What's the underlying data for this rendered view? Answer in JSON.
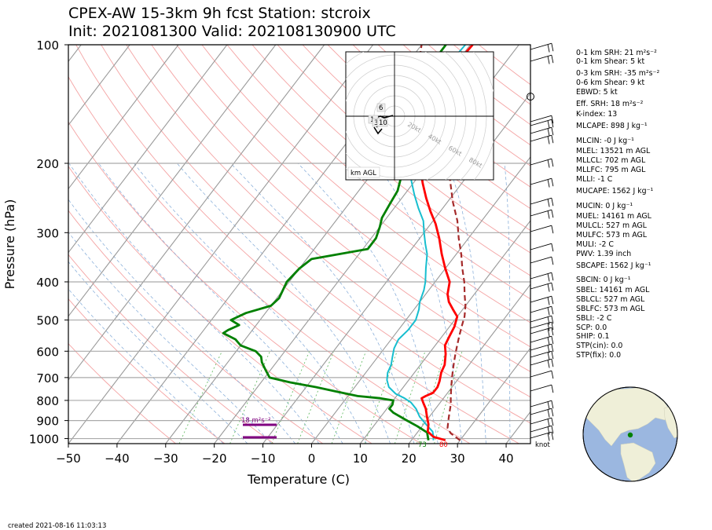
{
  "title": {
    "line1": "CPEX-AW 15-3km  9h fcst  Station: stcroix",
    "line2": "Init: 2021081300  Valid: 202108130900 UTC"
  },
  "footer": "created 2021-08-16 11:03:13",
  "knot_label": "knot",
  "srh_label": "18 m²s⁻²",
  "hodograph": {
    "label": "km AGL",
    "ring_labels": [
      "20kt",
      "40kt",
      "60kt",
      "80kt"
    ],
    "height_labels": [
      "6",
      "1",
      "3",
      "10"
    ]
  },
  "indices": [
    "0-1 km SRH: 21 m²s⁻²",
    "0-1 km Shear: 5 kt",
    "0-3 km SRH: -35 m²s⁻²",
    "0-6 km Shear: 9 kt",
    "EBWD: 5 kt",
    "Eff. SRH: 18 m²s⁻²",
    "K-index: 13",
    "MLCAPE: 898 J kg⁻¹",
    "MLCIN: -0 J kg⁻¹",
    "MLEL: 13521 m AGL",
    "MLLCL: 702 m AGL",
    "MLLFC: 795 m AGL",
    "MLLI: -1 C",
    "MUCAPE: 1562 J kg⁻¹",
    "MUCIN: 0 J kg⁻¹",
    "MUEL: 14161 m AGL",
    "MULCL: 527 m AGL",
    "MULFC: 573 m AGL",
    "MULI: -2 C",
    "PWV: 1.39 inch",
    "SBCAPE: 1562 J kg⁻¹",
    "SBCIN: 0 J kg⁻¹",
    "SBEL: 14161 m AGL",
    "SBLCL: 527 m AGL",
    "SBLFC: 573 m AGL",
    "SBLI: -2 C",
    "SCP: 0.0",
    "SHIP: 0.1",
    "STP(cin): 0.0",
    "STP(fix): 0.0"
  ],
  "chart_data": {
    "type": "line",
    "xlabel": "Temperature (C)",
    "ylabel": "Pressure (hPa)",
    "xlim": [
      -50,
      45
    ],
    "ylim": [
      1030,
      100
    ],
    "y_scale": "log",
    "x_ticks": [
      -50,
      -40,
      -30,
      -20,
      -10,
      0,
      10,
      20,
      30,
      40
    ],
    "y_ticks": [
      100,
      200,
      300,
      400,
      500,
      600,
      700,
      800,
      900,
      1000
    ],
    "surface_labels": {
      "temperature_f": "80",
      "dewpoint_f": "73"
    },
    "colors": {
      "temperature": "#ff0000",
      "dewpoint": "#008000",
      "wetbulb": "#17becf",
      "parcel": "#a52a2a",
      "srh": "#800080"
    },
    "series": [
      {
        "kind": "temperature",
        "points": [
          [
            27,
            1010
          ],
          [
            24,
            990
          ],
          [
            22,
            960
          ],
          [
            21,
            920
          ],
          [
            19.5,
            880
          ],
          [
            18,
            840
          ],
          [
            16.5,
            810
          ],
          [
            15.5,
            790
          ],
          [
            16,
            780
          ],
          [
            17,
            765
          ],
          [
            17,
            740
          ],
          [
            16.5,
            715
          ],
          [
            15.5,
            680
          ],
          [
            15,
            650
          ],
          [
            13.5,
            610
          ],
          [
            12,
            580
          ],
          [
            11.5,
            550
          ],
          [
            11,
            520
          ],
          [
            10,
            490
          ],
          [
            8,
            470
          ],
          [
            6,
            450
          ],
          [
            4.5,
            430
          ],
          [
            3,
            400
          ],
          [
            0,
            370
          ],
          [
            -3,
            340
          ],
          [
            -6,
            310
          ],
          [
            -9,
            285
          ],
          [
            -12,
            265
          ],
          [
            -15,
            245
          ],
          [
            -18,
            225
          ],
          [
            -21,
            205
          ],
          [
            -24,
            190
          ],
          [
            -27,
            175
          ],
          [
            -28,
            165
          ],
          [
            -28.5,
            155
          ],
          [
            -29,
            140
          ],
          [
            -29.5,
            125
          ],
          [
            -30,
            115
          ],
          [
            -29.5,
            100
          ]
        ]
      },
      {
        "kind": "dewpoint",
        "points": [
          [
            23.5,
            1010
          ],
          [
            23,
            995
          ],
          [
            22,
            965
          ],
          [
            19,
            930
          ],
          [
            16,
            900
          ],
          [
            12,
            860
          ],
          [
            10.5,
            840
          ],
          [
            10.5,
            820
          ],
          [
            10,
            800
          ],
          [
            7,
            790
          ],
          [
            2,
            780
          ],
          [
            -3,
            760
          ],
          [
            -8,
            740
          ],
          [
            -14,
            720
          ],
          [
            -19,
            700
          ],
          [
            -21,
            670
          ],
          [
            -23,
            640
          ],
          [
            -24,
            620
          ],
          [
            -26,
            600
          ],
          [
            -30,
            580
          ],
          [
            -32,
            560
          ],
          [
            -35.5,
            540
          ],
          [
            -35,
            530
          ],
          [
            -33.5,
            515
          ],
          [
            -36,
            500
          ],
          [
            -34,
            480
          ],
          [
            -30,
            460
          ],
          [
            -29.5,
            440
          ],
          [
            -30,
            420
          ],
          [
            -30.5,
            400
          ],
          [
            -30,
            370
          ],
          [
            -29,
            350
          ],
          [
            -19,
            330
          ],
          [
            -19,
            310
          ],
          [
            -20,
            290
          ],
          [
            -21,
            275
          ],
          [
            -21.5,
            255
          ],
          [
            -22,
            235
          ],
          [
            -24,
            210
          ],
          [
            -26,
            190
          ],
          [
            -28,
            175
          ],
          [
            -30.5,
            160
          ],
          [
            -33,
            145
          ],
          [
            -35,
            130
          ],
          [
            -36,
            120
          ],
          [
            -35,
            110
          ],
          [
            -35,
            100
          ]
        ]
      },
      {
        "kind": "wetbulb",
        "points": [
          [
            24.5,
            1010
          ],
          [
            24,
            990
          ],
          [
            23,
            960
          ],
          [
            20.5,
            920
          ],
          [
            18,
            880
          ],
          [
            16,
            840
          ],
          [
            14,
            810
          ],
          [
            12,
            790
          ],
          [
            9.5,
            770
          ],
          [
            7,
            740
          ],
          [
            5.5,
            710
          ],
          [
            4.5,
            680
          ],
          [
            4,
            650
          ],
          [
            3,
            620
          ],
          [
            2,
            590
          ],
          [
            1.5,
            560
          ],
          [
            2,
            530
          ],
          [
            2,
            500
          ],
          [
            1,
            470
          ],
          [
            0,
            450
          ],
          [
            -1,
            420
          ],
          [
            -2,
            400
          ],
          [
            -4,
            370
          ],
          [
            -6,
            340
          ],
          [
            -8,
            320
          ],
          [
            -10,
            300
          ],
          [
            -12,
            280
          ],
          [
            -15,
            260
          ],
          [
            -18,
            240
          ],
          [
            -21,
            220
          ],
          [
            -24,
            200
          ],
          [
            -26,
            185
          ],
          [
            -28,
            170
          ],
          [
            -29.5,
            160
          ],
          [
            -30.5,
            145
          ],
          [
            -31,
            130
          ],
          [
            -31.5,
            115
          ],
          [
            -31,
            100
          ]
        ]
      },
      {
        "kind": "parcel",
        "points": [
          [
            30,
            1010
          ],
          [
            27,
            970
          ],
          [
            25.5,
            940
          ],
          [
            24.5,
            900
          ],
          [
            23.5,
            860
          ],
          [
            22.5,
            820
          ],
          [
            21.5,
            790
          ],
          [
            20.5,
            760
          ],
          [
            19.5,
            730
          ],
          [
            18.5,
            700
          ],
          [
            17.5,
            670
          ],
          [
            16.5,
            640
          ],
          [
            15.5,
            610
          ],
          [
            14.5,
            580
          ],
          [
            13.5,
            550
          ],
          [
            12.5,
            520
          ],
          [
            11.5,
            490
          ],
          [
            10,
            460
          ],
          [
            8,
            430
          ],
          [
            6,
            400
          ],
          [
            3.5,
            370
          ],
          [
            1,
            340
          ],
          [
            -2,
            310
          ],
          [
            -5,
            280
          ],
          [
            -9,
            250
          ],
          [
            -13,
            220
          ],
          [
            -17,
            200
          ],
          [
            -21,
            180
          ],
          [
            -25,
            160
          ],
          [
            -29,
            145
          ],
          [
            -33,
            130
          ],
          [
            -37,
            115
          ],
          [
            -40,
            100
          ]
        ]
      }
    ],
    "srh_layer_hpa": [
      940,
      1000
    ]
  }
}
